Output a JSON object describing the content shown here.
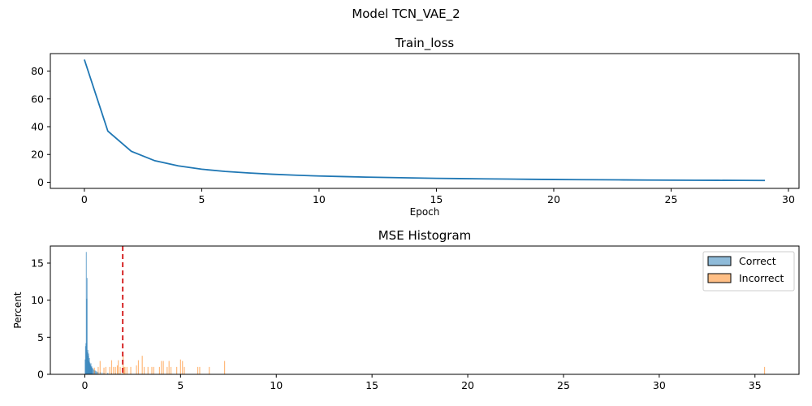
{
  "figure": {
    "suptitle": "Model TCN_VAE_2"
  },
  "chart_data": [
    {
      "type": "line",
      "title": "Train_loss",
      "xlabel": "Epoch",
      "ylabel": "",
      "xlim": [
        -1.45,
        30.45
      ],
      "ylim": [
        -4.4,
        92.6
      ],
      "xticks": [
        0,
        5,
        10,
        15,
        20,
        25,
        30
      ],
      "yticks": [
        0,
        20,
        40,
        60,
        80
      ],
      "grid": false,
      "series": [
        {
          "color": "#1f77b4",
          "x": [
            0,
            1,
            2,
            3,
            4,
            5,
            6,
            7,
            8,
            9,
            10,
            11,
            12,
            13,
            14,
            15,
            16,
            17,
            18,
            19,
            20,
            21,
            22,
            23,
            24,
            25,
            26,
            27,
            28,
            29
          ],
          "y": [
            88.3,
            36.8,
            22.3,
            15.5,
            11.8,
            9.4,
            7.8,
            6.7,
            5.8,
            5.1,
            4.5,
            4.1,
            3.7,
            3.4,
            3.1,
            2.85,
            2.65,
            2.45,
            2.3,
            2.15,
            2.0,
            1.9,
            1.8,
            1.7,
            1.6,
            1.5,
            1.45,
            1.4,
            1.35,
            1.3
          ]
        }
      ]
    },
    {
      "type": "histogram",
      "title": "MSE Histogram",
      "xlabel": "",
      "ylabel": "Percent",
      "xlim": [
        -1.8,
        37.3
      ],
      "ylim": [
        0,
        17.3
      ],
      "xticks": [
        0,
        5,
        10,
        15,
        20,
        25,
        30,
        35
      ],
      "yticks": [
        0,
        5,
        10,
        15
      ],
      "grid": false,
      "legend_position": "top-right",
      "threshold": {
        "x": 1.98,
        "color": "#d62728"
      },
      "series": [
        {
          "name": "Correct",
          "color": "#1f77b4",
          "x": [
            0.02,
            0.04,
            0.06,
            0.08,
            0.1,
            0.12,
            0.14,
            0.16,
            0.18,
            0.2,
            0.22,
            0.24,
            0.26,
            0.28,
            0.3,
            0.32,
            0.34,
            0.36,
            0.38,
            0.4,
            0.44,
            0.48,
            0.52,
            0.56,
            0.6,
            0.65,
            0.7,
            0.8,
            0.9,
            1.0,
            1.2,
            1.4,
            1.6,
            1.8,
            1.95
          ],
          "y": [
            2.0,
            3.8,
            4.2,
            16.5,
            10.2,
            13.0,
            3.0,
            3.3,
            2.5,
            2.8,
            1.8,
            2.2,
            1.6,
            1.4,
            1.2,
            1.5,
            1.0,
            1.1,
            0.8,
            0.9,
            0.7,
            0.6,
            0.5,
            0.5,
            0.4,
            0.35,
            0.3,
            0.3,
            0.25,
            0.2,
            0.2,
            0.15,
            0.15,
            0.1,
            0.1
          ]
        },
        {
          "name": "Incorrect",
          "color": "#ff7f0e",
          "x": [
            0.5,
            0.7,
            0.8,
            1.0,
            1.1,
            1.3,
            1.4,
            1.5,
            1.6,
            1.7,
            1.75,
            1.85,
            2.0,
            2.05,
            2.1,
            2.2,
            2.4,
            2.7,
            2.8,
            3.0,
            3.1,
            3.3,
            3.5,
            3.6,
            3.9,
            4.0,
            4.1,
            4.3,
            4.4,
            4.5,
            4.8,
            5.0,
            5.1,
            5.2,
            5.9,
            6.0,
            6.5,
            7.3,
            35.5
          ],
          "y": [
            0.9,
            1.0,
            1.8,
            0.9,
            1.0,
            1.0,
            1.9,
            1.0,
            1.0,
            1.2,
            1.9,
            1.0,
            2.6,
            1.0,
            1.0,
            1.0,
            1.0,
            1.2,
            1.9,
            2.5,
            1.0,
            1.0,
            1.0,
            1.0,
            1.0,
            1.8,
            1.8,
            1.0,
            1.8,
            1.0,
            1.0,
            2.0,
            1.8,
            1.0,
            1.0,
            1.0,
            1.0,
            1.8,
            1.0
          ]
        }
      ]
    }
  ]
}
